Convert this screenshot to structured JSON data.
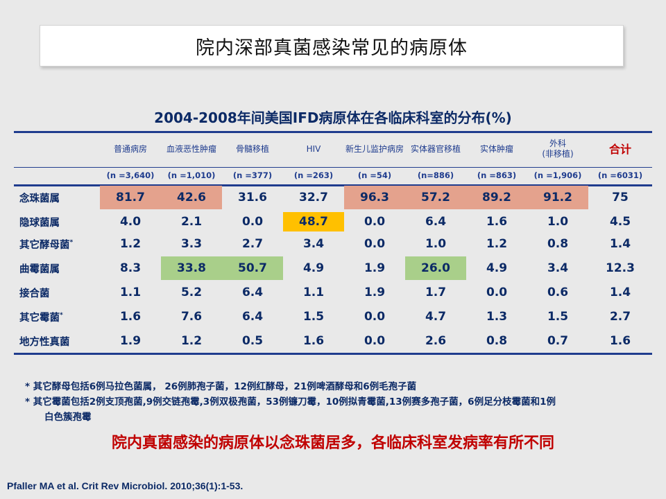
{
  "slide": {
    "title": "院内深部真菌感染常见的病原体",
    "table_title": "2004-2008年间美国IFD病原体在各临床科室的分布(%)",
    "conclusion": "院内真菌感染的病原体以念珠菌居多，各临床科室发病率有所不同",
    "citation": "Pfaller MA et al. Crit Rev Microbiol. 2010;36(1):1-53."
  },
  "columns": [
    {
      "label": "普通病房",
      "n": "(n =3,640)"
    },
    {
      "label": "血液恶性肿瘤",
      "n": "(n =1,010)"
    },
    {
      "label": "骨髓移植",
      "n": "(n =377)"
    },
    {
      "label": "HIV",
      "n": "(n =263)"
    },
    {
      "label": "新生儿监护病房",
      "n": "(n =54)"
    },
    {
      "label": "实体器官移植",
      "n": "(n=886)"
    },
    {
      "label": "实体肿瘤",
      "n": "(n =863)"
    },
    {
      "label": "外科\n(非移植)",
      "n": "(n =1,906)"
    },
    {
      "label": "合计",
      "n": "(n =6031)"
    }
  ],
  "rows": [
    {
      "label": "念珠菌属",
      "sup": "",
      "values": [
        "81.7",
        "42.6",
        "31.6",
        "32.7",
        "96.3",
        "57.2",
        "89.2",
        "91.2",
        "75"
      ]
    },
    {
      "label": "隐球菌属",
      "sup": "",
      "values": [
        "4.0",
        "2.1",
        "0.0",
        "48.7",
        "0.0",
        "6.4",
        "1.6",
        "1.0",
        "4.5"
      ]
    },
    {
      "label": "其它酵母菌",
      "sup": "*",
      "values": [
        "1.2",
        "3.3",
        "2.7",
        "3.4",
        "0.0",
        "1.0",
        "1.2",
        "0.8",
        "1.4"
      ]
    },
    {
      "label": "曲霉菌属",
      "sup": "",
      "values": [
        "8.3",
        "33.8",
        "50.7",
        "4.9",
        "1.9",
        "26.0",
        "4.9",
        "3.4",
        "12.3"
      ]
    },
    {
      "label": "接合菌",
      "sup": "",
      "values": [
        "1.1",
        "5.2",
        "6.4",
        "1.1",
        "1.9",
        "1.7",
        "0.0",
        "0.6",
        "1.4"
      ]
    },
    {
      "label": "其它霉菌",
      "sup": "*",
      "values": [
        "1.6",
        "7.6",
        "6.4",
        "1.5",
        "0.0",
        "4.7",
        "1.3",
        "1.5",
        "2.7"
      ]
    },
    {
      "label": "地方性真菌",
      "sup": "",
      "values": [
        "1.9",
        "1.2",
        "0.5",
        "1.6",
        "0.0",
        "2.6",
        "0.8",
        "0.7",
        "1.6"
      ]
    }
  ],
  "highlights": [
    {
      "row": 0,
      "cols": [
        0,
        1,
        4,
        5,
        6,
        7
      ],
      "color": "#e4a28d"
    },
    {
      "row": 1,
      "cols": [
        3
      ],
      "color": "#ffc000"
    },
    {
      "row": 3,
      "cols": [
        1,
        2,
        5
      ],
      "color": "#a9cf8a"
    }
  ],
  "notes": [
    "* 其它酵母包括6例马拉色菌属， 26例肺孢子菌，12例红酵母，21例啤酒酵母和6例毛孢子菌",
    "* 其它霉菌包括2例支顶孢菌,9例交链孢霉,3例双极孢菌，53例镰刀霉，10例拟青霉菌,13例赛多孢子菌，6例足分枝霉菌和1例",
    "白色簇孢霉"
  ]
}
